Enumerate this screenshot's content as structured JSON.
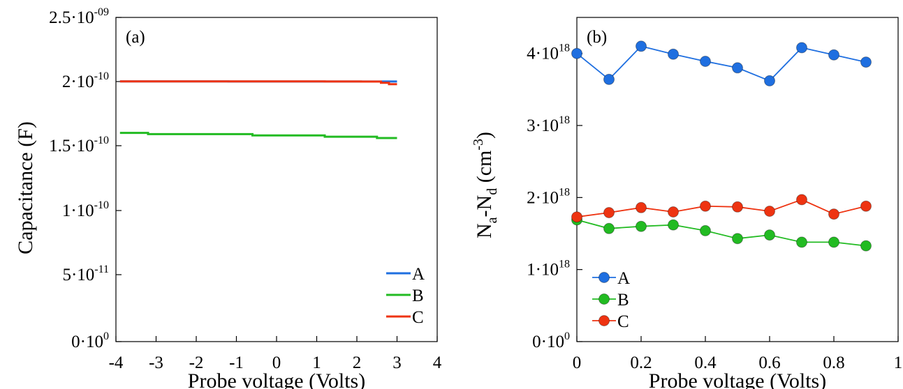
{
  "chart_data": [
    {
      "type": "line",
      "panel_label": "(a)",
      "xlabel": "Probe voltage (Volts)",
      "ylabel": "Capacitance (F)",
      "xlim": [
        -4,
        4
      ],
      "ylim": [
        0,
        2.5e-09
      ],
      "x_ticks": [
        {
          "value": -4,
          "label": "-4"
        },
        {
          "value": -3,
          "label": "-3"
        },
        {
          "value": -2,
          "label": "-2"
        },
        {
          "value": -1,
          "label": "-1"
        },
        {
          "value": 0,
          "label": "0"
        },
        {
          "value": 1,
          "label": "1"
        },
        {
          "value": 2,
          "label": "2"
        },
        {
          "value": 3,
          "label": "3"
        },
        {
          "value": 4,
          "label": "4"
        }
      ],
      "y_ticks": [
        {
          "value": 0,
          "mant": "0·10",
          "exp": "0"
        },
        {
          "value": 5e-11,
          "mant": "5·10",
          "exp": "-11"
        },
        {
          "value": 1e-10,
          "mant": "1·10",
          "exp": "-10"
        },
        {
          "value": 1.5e-10,
          "mant": "1.5·10",
          "exp": "-10"
        },
        {
          "value": 2e-10,
          "mant": "2·10",
          "exp": "-10"
        },
        {
          "value": 2.5e-09,
          "mant": "2.5·10",
          "exp": "-09"
        }
      ],
      "legend_position": "bottom-right",
      "series": [
        {
          "name": "A",
          "color": "#1f6fe0",
          "x": [
            -3.9,
            -1.2,
            -1.2,
            1.5,
            1.5,
            3.0
          ],
          "y": [
            2.04e-10,
            2.04e-10,
            2.03e-10,
            2.03e-10,
            2.02e-10,
            2.02e-10
          ]
        },
        {
          "name": "B",
          "color": "#22bb22",
          "x": [
            -3.9,
            -3.2,
            -3.2,
            -0.6,
            -0.6,
            1.2,
            1.2,
            2.5,
            2.5,
            3.0
          ],
          "y": [
            1.6e-10,
            1.6e-10,
            1.59e-10,
            1.59e-10,
            1.58e-10,
            1.58e-10,
            1.57e-10,
            1.57e-10,
            1.56e-10,
            1.56e-10
          ]
        },
        {
          "name": "C",
          "color": "#ee3311",
          "x": [
            -3.9,
            -3.3,
            -3.3,
            -1.9,
            -1.9,
            -0.6,
            -0.6,
            0.2,
            0.2,
            1.2,
            1.2,
            1.7,
            1.7,
            2.1,
            2.1,
            2.4,
            2.4,
            2.6,
            2.6,
            2.8,
            2.8,
            3.0
          ],
          "y": [
            2.08e-10,
            2.08e-10,
            2.07e-10,
            2.07e-10,
            2.06e-10,
            2.06e-10,
            2.05e-10,
            2.05e-10,
            2.04e-10,
            2.04e-10,
            2.03e-10,
            2.03e-10,
            2.02e-10,
            2.02e-10,
            2.01e-10,
            2.01e-10,
            2e-10,
            2e-10,
            1.99e-10,
            1.99e-10,
            1.98e-10,
            1.98e-10
          ]
        }
      ]
    },
    {
      "type": "line",
      "panel_label": "(b)",
      "xlabel": "Probe voltage (Volts)",
      "ylabel_parts": {
        "n1": "N",
        "s1": "a",
        "dash": "-N",
        "s2": "d",
        "unit": " (cm",
        "unit_exp": "-3",
        "close": ")"
      },
      "xlim": [
        0,
        1
      ],
      "ylim": [
        0,
        4.5e+18
      ],
      "x_ticks": [
        {
          "value": 0,
          "label": "0"
        },
        {
          "value": 0.2,
          "label": "0.2"
        },
        {
          "value": 0.4,
          "label": "0.4"
        },
        {
          "value": 0.6,
          "label": "0.6"
        },
        {
          "value": 0.8,
          "label": "0.8"
        },
        {
          "value": 1,
          "label": "1"
        }
      ],
      "y_ticks": [
        {
          "value": 0,
          "mant": "0·10",
          "exp": "0"
        },
        {
          "value": 1e+18,
          "mant": "1·10",
          "exp": "18"
        },
        {
          "value": 2e+18,
          "mant": "2·10",
          "exp": "18"
        },
        {
          "value": 3e+18,
          "mant": "3·10",
          "exp": "18"
        },
        {
          "value": 4e+18,
          "mant": "4·10",
          "exp": "18"
        }
      ],
      "legend_position": "bottom-left",
      "x": [
        0,
        0.1,
        0.2,
        0.3,
        0.4,
        0.5,
        0.6,
        0.7,
        0.8,
        0.9
      ],
      "series": [
        {
          "name": "A",
          "color": "#1f6fe0",
          "values": [
            4e+18,
            3.64e+18,
            4.1e+18,
            3.99e+18,
            3.89e+18,
            3.8e+18,
            3.62e+18,
            4.08e+18,
            3.98e+18,
            3.88e+18
          ]
        },
        {
          "name": "B",
          "color": "#22bb22",
          "values": [
            1.69e+18,
            1.57e+18,
            1.6e+18,
            1.62e+18,
            1.54e+18,
            1.43e+18,
            1.48e+18,
            1.38e+18,
            1.38e+18,
            1.33e+18
          ]
        },
        {
          "name": "C",
          "color": "#ee3311",
          "values": [
            1.73e+18,
            1.79e+18,
            1.86e+18,
            1.8e+18,
            1.88e+18,
            1.87e+18,
            1.81e+18,
            1.97e+18,
            1.77e+18,
            1.88e+18
          ]
        }
      ]
    }
  ]
}
